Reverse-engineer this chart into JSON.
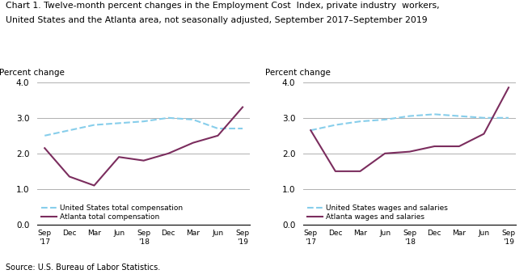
{
  "title_line1": "Chart 1. Twelve-month percent changes in the Employment Cost  Index, private industry  workers,",
  "title_line2": "United States and the Atlanta area, not seasonally adjusted, September 2017–September 2019",
  "source": "Source: U.S. Bureau of Labor Statistics.",
  "ylabel": "Percent change",
  "ylim": [
    0.0,
    4.0
  ],
  "yticks": [
    0.0,
    1.0,
    2.0,
    3.0,
    4.0
  ],
  "x_labels": [
    "Sep\n'17",
    "Dec",
    "Mar",
    "Jun",
    "Sep\n'18",
    "Dec",
    "Mar",
    "Jun",
    "Sep\n'19"
  ],
  "left_chart": {
    "us_total_comp": [
      2.5,
      2.65,
      2.8,
      2.85,
      2.9,
      3.0,
      2.95,
      2.7,
      2.7
    ],
    "atlanta_total_comp": [
      2.15,
      1.35,
      1.1,
      1.9,
      1.8,
      2.0,
      2.3,
      2.5,
      3.3
    ],
    "us_label": "United States total compensation",
    "atlanta_label": "Atlanta total compensation"
  },
  "right_chart": {
    "us_wages": [
      2.65,
      2.8,
      2.9,
      2.95,
      3.05,
      3.1,
      3.05,
      3.0,
      3.0
    ],
    "atlanta_wages": [
      2.65,
      1.5,
      1.5,
      2.0,
      2.05,
      2.2,
      2.2,
      2.55,
      3.85
    ],
    "us_label": "United States wages and salaries",
    "atlanta_label": "Atlanta wages and salaries"
  },
  "us_color": "#87CEEB",
  "atlanta_color": "#7B2D5E",
  "us_linestyle": "--",
  "atlanta_linestyle": "-",
  "linewidth": 1.5
}
